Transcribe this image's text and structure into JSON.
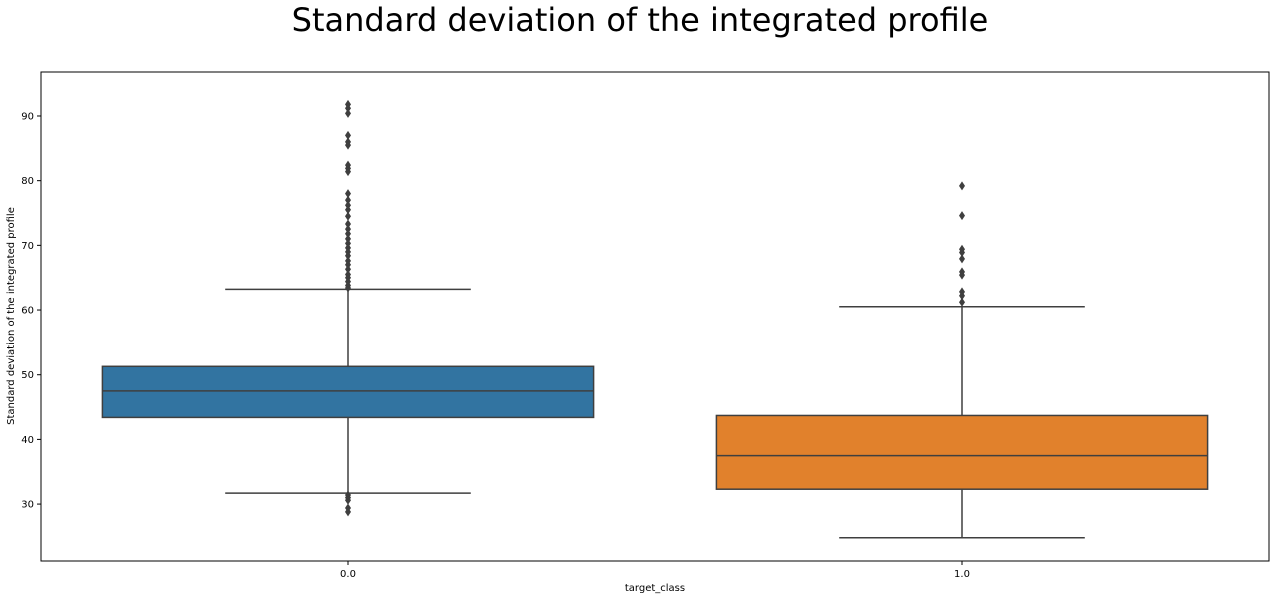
{
  "chart_data": {
    "type": "box",
    "title": "Standard deviation of the integrated profile",
    "xlabel": "target_class",
    "ylabel": "Standard deviation of the integrated profile",
    "categories": [
      "0.0",
      "1.0"
    ],
    "ylim": [
      21.2,
      96.8
    ],
    "yticks": [
      30,
      40,
      50,
      60,
      70,
      80,
      90
    ],
    "grid": false,
    "boxes": [
      {
        "category": "0.0",
        "color": "#3274a1",
        "whisker_low": 31.7,
        "q1": 43.4,
        "median": 47.5,
        "q3": 51.3,
        "whisker_high": 63.2,
        "outliers": [
          91.8,
          91.2,
          90.4,
          87.0,
          86.0,
          85.5,
          82.4,
          81.9,
          81.4,
          78.0,
          77.0,
          76.2,
          75.5,
          74.5,
          73.3,
          72.5,
          71.8,
          71.0,
          70.3,
          69.6,
          69.0,
          68.4,
          67.6,
          67.0,
          66.3,
          65.5,
          65.0,
          64.4,
          63.8,
          63.4,
          31.4,
          31.0,
          30.6,
          29.4,
          28.8
        ]
      },
      {
        "category": "1.0",
        "color": "#e1812c",
        "whisker_low": 24.8,
        "q1": 32.3,
        "median": 37.5,
        "q3": 43.7,
        "whisker_high": 60.5,
        "outliers": [
          79.2,
          74.6,
          69.4,
          68.9,
          67.9,
          65.9,
          65.4,
          62.8,
          62.2,
          61.2
        ]
      }
    ]
  }
}
